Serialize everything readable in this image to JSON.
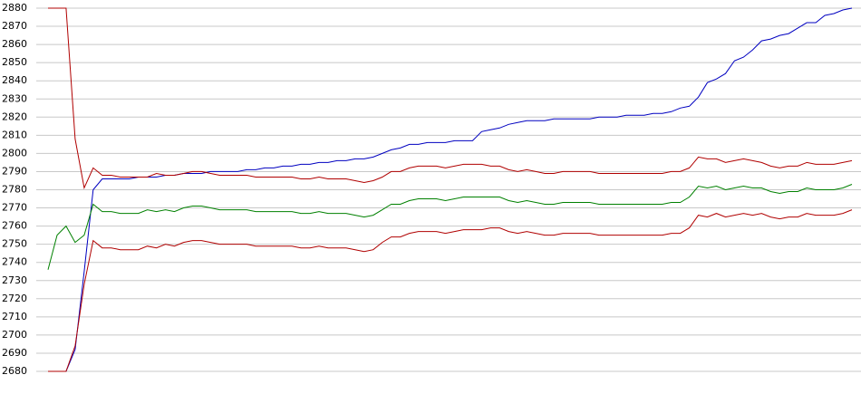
{
  "chart_data": {
    "type": "line",
    "categories": [
      null,
      null,
      null,
      null,
      null,
      null,
      null,
      null,
      null,
      null,
      null,
      null,
      null,
      null,
      null,
      null,
      null,
      null,
      null,
      null,
      null,
      null,
      null,
      null,
      null,
      null,
      null,
      null,
      null,
      null,
      null,
      null,
      null,
      null,
      null,
      null,
      null,
      null,
      null,
      null,
      null,
      null,
      null,
      null,
      null,
      null,
      null,
      null,
      null,
      null,
      null,
      null,
      null,
      null,
      null,
      null,
      null,
      null,
      null,
      null,
      null,
      null,
      null,
      null,
      null,
      null,
      null,
      null,
      null,
      null,
      null,
      null,
      null,
      null,
      null,
      null,
      null,
      null,
      null,
      null,
      null,
      null,
      null,
      null,
      null,
      null,
      null,
      null,
      null,
      null
    ],
    "series": [
      {
        "color": "#0000c0",
        "values": [
          2680,
          2680,
          2680,
          2692,
          2735,
          2780,
          2786,
          2786,
          2786,
          2786,
          2787,
          2787,
          2787,
          2788,
          2788,
          2789,
          2789,
          2789,
          2790,
          2790,
          2790,
          2790,
          2791,
          2791,
          2792,
          2792,
          2793,
          2793,
          2794,
          2794,
          2795,
          2795,
          2796,
          2796,
          2797,
          2797,
          2798,
          2800,
          2802,
          2803,
          2805,
          2805,
          2806,
          2806,
          2806,
          2807,
          2807,
          2807,
          2812,
          2813,
          2814,
          2816,
          2817,
          2818,
          2818,
          2818,
          2819,
          2819,
          2819,
          2819,
          2819,
          2820,
          2820,
          2820,
          2821,
          2821,
          2821,
          2822,
          2822,
          2823,
          2825,
          2826,
          2831,
          2839,
          2841,
          2844,
          2851,
          2853,
          2857,
          2862,
          2863,
          2865,
          2866,
          2869,
          2872,
          2872,
          2876,
          2877,
          2879,
          2880
        ]
      },
      {
        "color": "#b00000",
        "values": [
          2880,
          2880,
          2880,
          2808,
          2781,
          2792,
          2788,
          2788,
          2787,
          2787,
          2787,
          2787,
          2789,
          2788,
          2788,
          2789,
          2790,
          2790,
          2789,
          2788,
          2788,
          2788,
          2788,
          2787,
          2787,
          2787,
          2787,
          2787,
          2786,
          2786,
          2787,
          2786,
          2786,
          2786,
          2785,
          2784,
          2785,
          2787,
          2790,
          2790,
          2792,
          2793,
          2793,
          2793,
          2792,
          2793,
          2794,
          2794,
          2794,
          2793,
          2793,
          2791,
          2790,
          2791,
          2790,
          2789,
          2789,
          2790,
          2790,
          2790,
          2790,
          2789,
          2789,
          2789,
          2789,
          2789,
          2789,
          2789,
          2789,
          2790,
          2790,
          2792,
          2798,
          2797,
          2797,
          2795,
          2796,
          2797,
          2796,
          2795,
          2793,
          2792,
          2793,
          2793,
          2795,
          2794,
          2794,
          2794,
          2795,
          2796
        ]
      },
      {
        "color": "#008000",
        "values": [
          2736,
          2755,
          2760,
          2751,
          2755,
          2772,
          2768,
          2768,
          2767,
          2767,
          2767,
          2769,
          2768,
          2769,
          2768,
          2770,
          2771,
          2771,
          2770,
          2769,
          2769,
          2769,
          2769,
          2768,
          2768,
          2768,
          2768,
          2768,
          2767,
          2767,
          2768,
          2767,
          2767,
          2767,
          2766,
          2765,
          2766,
          2769,
          2772,
          2772,
          2774,
          2775,
          2775,
          2775,
          2774,
          2775,
          2776,
          2776,
          2776,
          2776,
          2776,
          2774,
          2773,
          2774,
          2773,
          2772,
          2772,
          2773,
          2773,
          2773,
          2773,
          2772,
          2772,
          2772,
          2772,
          2772,
          2772,
          2772,
          2772,
          2773,
          2773,
          2776,
          2782,
          2781,
          2782,
          2780,
          2781,
          2782,
          2781,
          2781,
          2779,
          2778,
          2779,
          2779,
          2781,
          2780,
          2780,
          2780,
          2781,
          2783
        ]
      },
      {
        "color": "#b00000",
        "values": [
          2680,
          2680,
          2680,
          2694,
          2728,
          2752,
          2748,
          2748,
          2747,
          2747,
          2747,
          2749,
          2748,
          2750,
          2749,
          2751,
          2752,
          2752,
          2751,
          2750,
          2750,
          2750,
          2750,
          2749,
          2749,
          2749,
          2749,
          2749,
          2748,
          2748,
          2749,
          2748,
          2748,
          2748,
          2747,
          2746,
          2747,
          2751,
          2754,
          2754,
          2756,
          2757,
          2757,
          2757,
          2756,
          2757,
          2758,
          2758,
          2758,
          2759,
          2759,
          2757,
          2756,
          2757,
          2756,
          2755,
          2755,
          2756,
          2756,
          2756,
          2756,
          2755,
          2755,
          2755,
          2755,
          2755,
          2755,
          2755,
          2755,
          2756,
          2756,
          2759,
          2766,
          2765,
          2767,
          2765,
          2766,
          2767,
          2766,
          2767,
          2765,
          2764,
          2765,
          2765,
          2767,
          2766,
          2766,
          2766,
          2767,
          2769
        ]
      }
    ],
    "ylim": [
      2680,
      2880
    ],
    "yticks": [
      2680,
      2690,
      2700,
      2710,
      2720,
      2730,
      2740,
      2750,
      2760,
      2770,
      2780,
      2790,
      2800,
      2810,
      2820,
      2830,
      2840,
      2850,
      2860,
      2870,
      2880
    ],
    "grid": true
  }
}
